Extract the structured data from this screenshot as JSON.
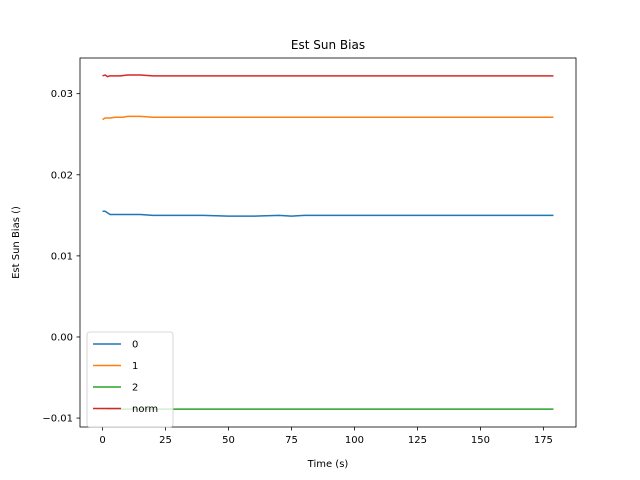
{
  "chart_data": {
    "type": "line",
    "title": "Est Sun Bias",
    "xlabel": "Time (s)",
    "ylabel": "Est Sun Bias ()",
    "xlim": [
      -8.95,
      187.95
    ],
    "ylim": [
      -0.0111,
      0.0344
    ],
    "xticks": [
      0,
      25,
      50,
      75,
      100,
      125,
      150,
      175
    ],
    "xtick_labels": [
      "0",
      "25",
      "50",
      "75",
      "100",
      "125",
      "150",
      "175"
    ],
    "yticks": [
      -0.01,
      0.0,
      0.01,
      0.02,
      0.03
    ],
    "ytick_labels": [
      "−0.01",
      "0.00",
      "0.01",
      "0.02",
      "0.03"
    ],
    "grid": false,
    "legend_position": "lower-left",
    "series": [
      {
        "name": "0",
        "color": "#1f77b4",
        "x": [
          0,
          1,
          2,
          3,
          4,
          5,
          7,
          10,
          15,
          20,
          25,
          30,
          40,
          50,
          60,
          70,
          75,
          80,
          90,
          100,
          110,
          120,
          130,
          140,
          150,
          160,
          170,
          179
        ],
        "y": [
          0.0155,
          0.0155,
          0.0153,
          0.0151,
          0.0151,
          0.0151,
          0.0151,
          0.0151,
          0.0151,
          0.015,
          0.015,
          0.015,
          0.015,
          0.0149,
          0.0149,
          0.015,
          0.0149,
          0.015,
          0.015,
          0.015,
          0.015,
          0.015,
          0.015,
          0.015,
          0.015,
          0.015,
          0.015,
          0.015
        ]
      },
      {
        "name": "1",
        "color": "#ff7f0e",
        "x": [
          0,
          1,
          2,
          3,
          5,
          8,
          10,
          12,
          15,
          20,
          25,
          30,
          40,
          50,
          60,
          70,
          80,
          90,
          100,
          110,
          120,
          130,
          140,
          150,
          160,
          170,
          179
        ],
        "y": [
          0.0268,
          0.027,
          0.027,
          0.027,
          0.0271,
          0.0271,
          0.0272,
          0.0272,
          0.0272,
          0.0271,
          0.0271,
          0.0271,
          0.0271,
          0.0271,
          0.0271,
          0.0271,
          0.0271,
          0.0271,
          0.0271,
          0.0271,
          0.0271,
          0.0271,
          0.0271,
          0.0271,
          0.0271,
          0.0271,
          0.0271
        ]
      },
      {
        "name": "2",
        "color": "#2ca02c",
        "x": [
          0,
          1,
          2,
          5,
          10,
          15,
          20,
          25,
          30,
          40,
          50,
          60,
          70,
          80,
          90,
          100,
          110,
          120,
          130,
          140,
          150,
          160,
          170,
          179
        ],
        "y": [
          -0.0089,
          -0.0088,
          -0.0089,
          -0.0089,
          -0.0089,
          -0.0089,
          -0.0089,
          -0.0089,
          -0.0089,
          -0.0089,
          -0.0089,
          -0.0089,
          -0.0089,
          -0.0089,
          -0.0089,
          -0.0089,
          -0.0089,
          -0.0089,
          -0.0089,
          -0.0089,
          -0.0089,
          -0.0089,
          -0.0089,
          -0.0089
        ]
      },
      {
        "name": "norm",
        "color": "#d62728",
        "x": [
          0,
          1,
          2,
          3,
          5,
          7,
          10,
          12,
          15,
          20,
          25,
          30,
          40,
          50,
          60,
          70,
          80,
          90,
          100,
          110,
          120,
          130,
          140,
          150,
          160,
          170,
          179
        ],
        "y": [
          0.0322,
          0.0323,
          0.0321,
          0.0322,
          0.0322,
          0.0322,
          0.0323,
          0.0323,
          0.0323,
          0.0322,
          0.0322,
          0.0322,
          0.0322,
          0.0322,
          0.0322,
          0.0322,
          0.0322,
          0.0322,
          0.0322,
          0.0322,
          0.0322,
          0.0322,
          0.0322,
          0.0322,
          0.0322,
          0.0322,
          0.0322
        ]
      }
    ]
  }
}
